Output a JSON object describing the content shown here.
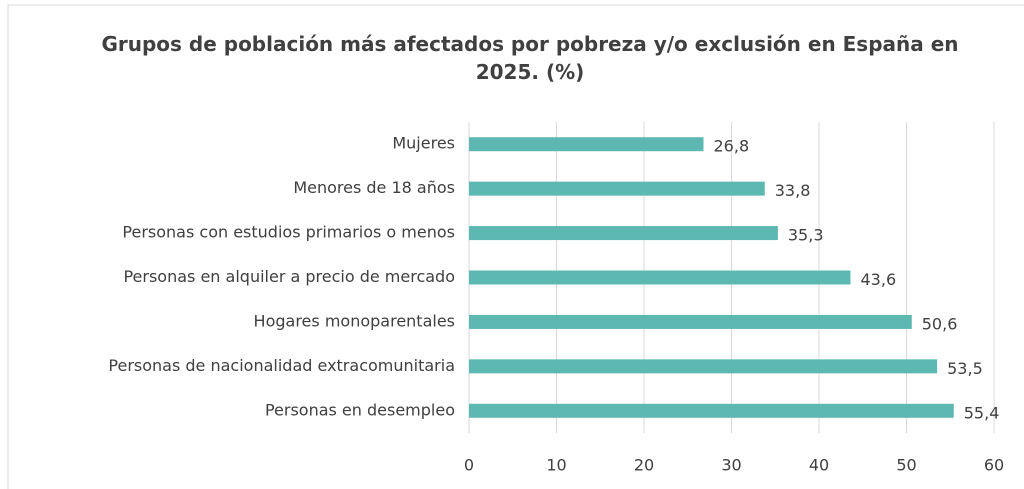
{
  "chart_data": {
    "type": "barh",
    "title": "Grupos de población más afectados por pobreza y/o exclusión en España en 2025. (%)",
    "categories": [
      "Mujeres",
      "Menores de 18 años",
      "Personas con estudios primarios o menos",
      "Personas en alquiler a precio de mercado",
      "Hogares monoparentales",
      "Personas de nacionalidad extracomunitaria",
      "Personas en desempleo"
    ],
    "values": [
      26.8,
      33.8,
      35.3,
      43.6,
      50.6,
      53.5,
      55.4
    ],
    "value_labels": [
      "26,8",
      "33,8",
      "35,3",
      "43,6",
      "50,6",
      "53,5",
      "55,4"
    ],
    "color": "#5cb8b0",
    "xlim": [
      0,
      60
    ],
    "xticks": [
      0,
      10,
      20,
      30,
      40,
      50,
      60
    ],
    "grid": true
  }
}
